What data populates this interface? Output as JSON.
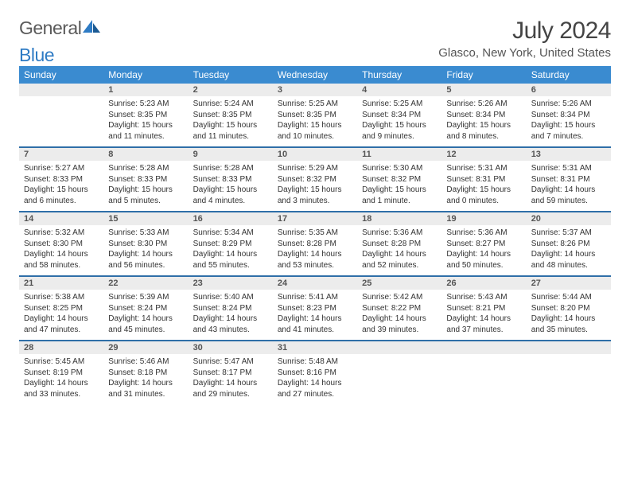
{
  "logo": {
    "text1": "General",
    "text2": "Blue"
  },
  "title": "July 2024",
  "location": "Glasco, New York, United States",
  "weekdays": [
    "Sunday",
    "Monday",
    "Tuesday",
    "Wednesday",
    "Thursday",
    "Friday",
    "Saturday"
  ],
  "colors": {
    "header_bg": "#3a8bd0",
    "header_text": "#ffffff",
    "daynum_bg": "#ececec",
    "row_separator": "#2f6fa8",
    "body_text": "#333333",
    "title_text": "#444444",
    "logo_blue": "#2e7bc4"
  },
  "font_sizes": {
    "title": 30,
    "subtitle": 15,
    "weekday": 12,
    "daynum": 11,
    "cell": 10
  },
  "weeks": [
    [
      null,
      {
        "n": "1",
        "sr": "Sunrise: 5:23 AM",
        "ss": "Sunset: 8:35 PM",
        "d1": "Daylight: 15 hours",
        "d2": "and 11 minutes."
      },
      {
        "n": "2",
        "sr": "Sunrise: 5:24 AM",
        "ss": "Sunset: 8:35 PM",
        "d1": "Daylight: 15 hours",
        "d2": "and 11 minutes."
      },
      {
        "n": "3",
        "sr": "Sunrise: 5:25 AM",
        "ss": "Sunset: 8:35 PM",
        "d1": "Daylight: 15 hours",
        "d2": "and 10 minutes."
      },
      {
        "n": "4",
        "sr": "Sunrise: 5:25 AM",
        "ss": "Sunset: 8:34 PM",
        "d1": "Daylight: 15 hours",
        "d2": "and 9 minutes."
      },
      {
        "n": "5",
        "sr": "Sunrise: 5:26 AM",
        "ss": "Sunset: 8:34 PM",
        "d1": "Daylight: 15 hours",
        "d2": "and 8 minutes."
      },
      {
        "n": "6",
        "sr": "Sunrise: 5:26 AM",
        "ss": "Sunset: 8:34 PM",
        "d1": "Daylight: 15 hours",
        "d2": "and 7 minutes."
      }
    ],
    [
      {
        "n": "7",
        "sr": "Sunrise: 5:27 AM",
        "ss": "Sunset: 8:33 PM",
        "d1": "Daylight: 15 hours",
        "d2": "and 6 minutes."
      },
      {
        "n": "8",
        "sr": "Sunrise: 5:28 AM",
        "ss": "Sunset: 8:33 PM",
        "d1": "Daylight: 15 hours",
        "d2": "and 5 minutes."
      },
      {
        "n": "9",
        "sr": "Sunrise: 5:28 AM",
        "ss": "Sunset: 8:33 PM",
        "d1": "Daylight: 15 hours",
        "d2": "and 4 minutes."
      },
      {
        "n": "10",
        "sr": "Sunrise: 5:29 AM",
        "ss": "Sunset: 8:32 PM",
        "d1": "Daylight: 15 hours",
        "d2": "and 3 minutes."
      },
      {
        "n": "11",
        "sr": "Sunrise: 5:30 AM",
        "ss": "Sunset: 8:32 PM",
        "d1": "Daylight: 15 hours",
        "d2": "and 1 minute."
      },
      {
        "n": "12",
        "sr": "Sunrise: 5:31 AM",
        "ss": "Sunset: 8:31 PM",
        "d1": "Daylight: 15 hours",
        "d2": "and 0 minutes."
      },
      {
        "n": "13",
        "sr": "Sunrise: 5:31 AM",
        "ss": "Sunset: 8:31 PM",
        "d1": "Daylight: 14 hours",
        "d2": "and 59 minutes."
      }
    ],
    [
      {
        "n": "14",
        "sr": "Sunrise: 5:32 AM",
        "ss": "Sunset: 8:30 PM",
        "d1": "Daylight: 14 hours",
        "d2": "and 58 minutes."
      },
      {
        "n": "15",
        "sr": "Sunrise: 5:33 AM",
        "ss": "Sunset: 8:30 PM",
        "d1": "Daylight: 14 hours",
        "d2": "and 56 minutes."
      },
      {
        "n": "16",
        "sr": "Sunrise: 5:34 AM",
        "ss": "Sunset: 8:29 PM",
        "d1": "Daylight: 14 hours",
        "d2": "and 55 minutes."
      },
      {
        "n": "17",
        "sr": "Sunrise: 5:35 AM",
        "ss": "Sunset: 8:28 PM",
        "d1": "Daylight: 14 hours",
        "d2": "and 53 minutes."
      },
      {
        "n": "18",
        "sr": "Sunrise: 5:36 AM",
        "ss": "Sunset: 8:28 PM",
        "d1": "Daylight: 14 hours",
        "d2": "and 52 minutes."
      },
      {
        "n": "19",
        "sr": "Sunrise: 5:36 AM",
        "ss": "Sunset: 8:27 PM",
        "d1": "Daylight: 14 hours",
        "d2": "and 50 minutes."
      },
      {
        "n": "20",
        "sr": "Sunrise: 5:37 AM",
        "ss": "Sunset: 8:26 PM",
        "d1": "Daylight: 14 hours",
        "d2": "and 48 minutes."
      }
    ],
    [
      {
        "n": "21",
        "sr": "Sunrise: 5:38 AM",
        "ss": "Sunset: 8:25 PM",
        "d1": "Daylight: 14 hours",
        "d2": "and 47 minutes."
      },
      {
        "n": "22",
        "sr": "Sunrise: 5:39 AM",
        "ss": "Sunset: 8:24 PM",
        "d1": "Daylight: 14 hours",
        "d2": "and 45 minutes."
      },
      {
        "n": "23",
        "sr": "Sunrise: 5:40 AM",
        "ss": "Sunset: 8:24 PM",
        "d1": "Daylight: 14 hours",
        "d2": "and 43 minutes."
      },
      {
        "n": "24",
        "sr": "Sunrise: 5:41 AM",
        "ss": "Sunset: 8:23 PM",
        "d1": "Daylight: 14 hours",
        "d2": "and 41 minutes."
      },
      {
        "n": "25",
        "sr": "Sunrise: 5:42 AM",
        "ss": "Sunset: 8:22 PM",
        "d1": "Daylight: 14 hours",
        "d2": "and 39 minutes."
      },
      {
        "n": "26",
        "sr": "Sunrise: 5:43 AM",
        "ss": "Sunset: 8:21 PM",
        "d1": "Daylight: 14 hours",
        "d2": "and 37 minutes."
      },
      {
        "n": "27",
        "sr": "Sunrise: 5:44 AM",
        "ss": "Sunset: 8:20 PM",
        "d1": "Daylight: 14 hours",
        "d2": "and 35 minutes."
      }
    ],
    [
      {
        "n": "28",
        "sr": "Sunrise: 5:45 AM",
        "ss": "Sunset: 8:19 PM",
        "d1": "Daylight: 14 hours",
        "d2": "and 33 minutes."
      },
      {
        "n": "29",
        "sr": "Sunrise: 5:46 AM",
        "ss": "Sunset: 8:18 PM",
        "d1": "Daylight: 14 hours",
        "d2": "and 31 minutes."
      },
      {
        "n": "30",
        "sr": "Sunrise: 5:47 AM",
        "ss": "Sunset: 8:17 PM",
        "d1": "Daylight: 14 hours",
        "d2": "and 29 minutes."
      },
      {
        "n": "31",
        "sr": "Sunrise: 5:48 AM",
        "ss": "Sunset: 8:16 PM",
        "d1": "Daylight: 14 hours",
        "d2": "and 27 minutes."
      },
      null,
      null,
      null
    ]
  ]
}
